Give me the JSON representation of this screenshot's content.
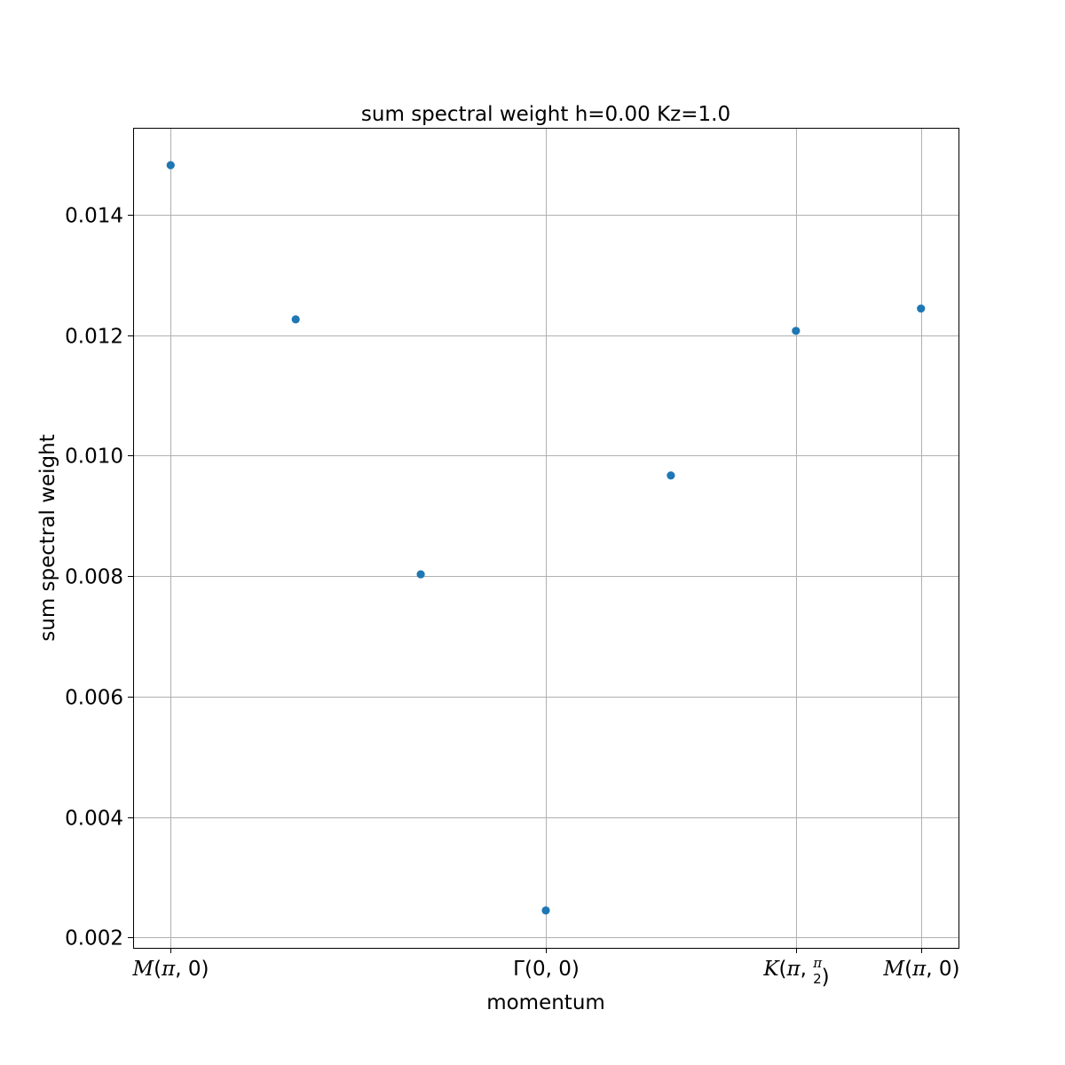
{
  "chart_data": {
    "type": "scatter",
    "title": "sum spectral weight h=0.00 Kz=1.0",
    "xlabel": "momentum",
    "ylabel": "sum spectral weight",
    "grid": true,
    "point_color": "#1f77b4",
    "x": [
      0,
      1,
      2,
      3,
      4,
      5,
      6
    ],
    "y": [
      0.01482,
      0.01226,
      0.00803,
      0.00245,
      0.00967,
      0.01207,
      0.01244
    ],
    "xlim": [
      -0.3,
      6.3
    ],
    "ylim": [
      0.00183,
      0.01544
    ],
    "xticks": [
      {
        "x": 0,
        "label": "M(π,0)"
      },
      {
        "x": 3,
        "label": "Γ(0,0)"
      },
      {
        "x": 5,
        "label": "K(π,π/2)"
      },
      {
        "x": 6,
        "label": "M(π,0)"
      }
    ],
    "yticks": [
      {
        "y": 0.002,
        "label": "0.002"
      },
      {
        "y": 0.004,
        "label": "0.004"
      },
      {
        "y": 0.006,
        "label": "0.006"
      },
      {
        "y": 0.008,
        "label": "0.008"
      },
      {
        "y": 0.01,
        "label": "0.010"
      },
      {
        "y": 0.012,
        "label": "0.012"
      },
      {
        "y": 0.014,
        "label": "0.014"
      }
    ]
  }
}
